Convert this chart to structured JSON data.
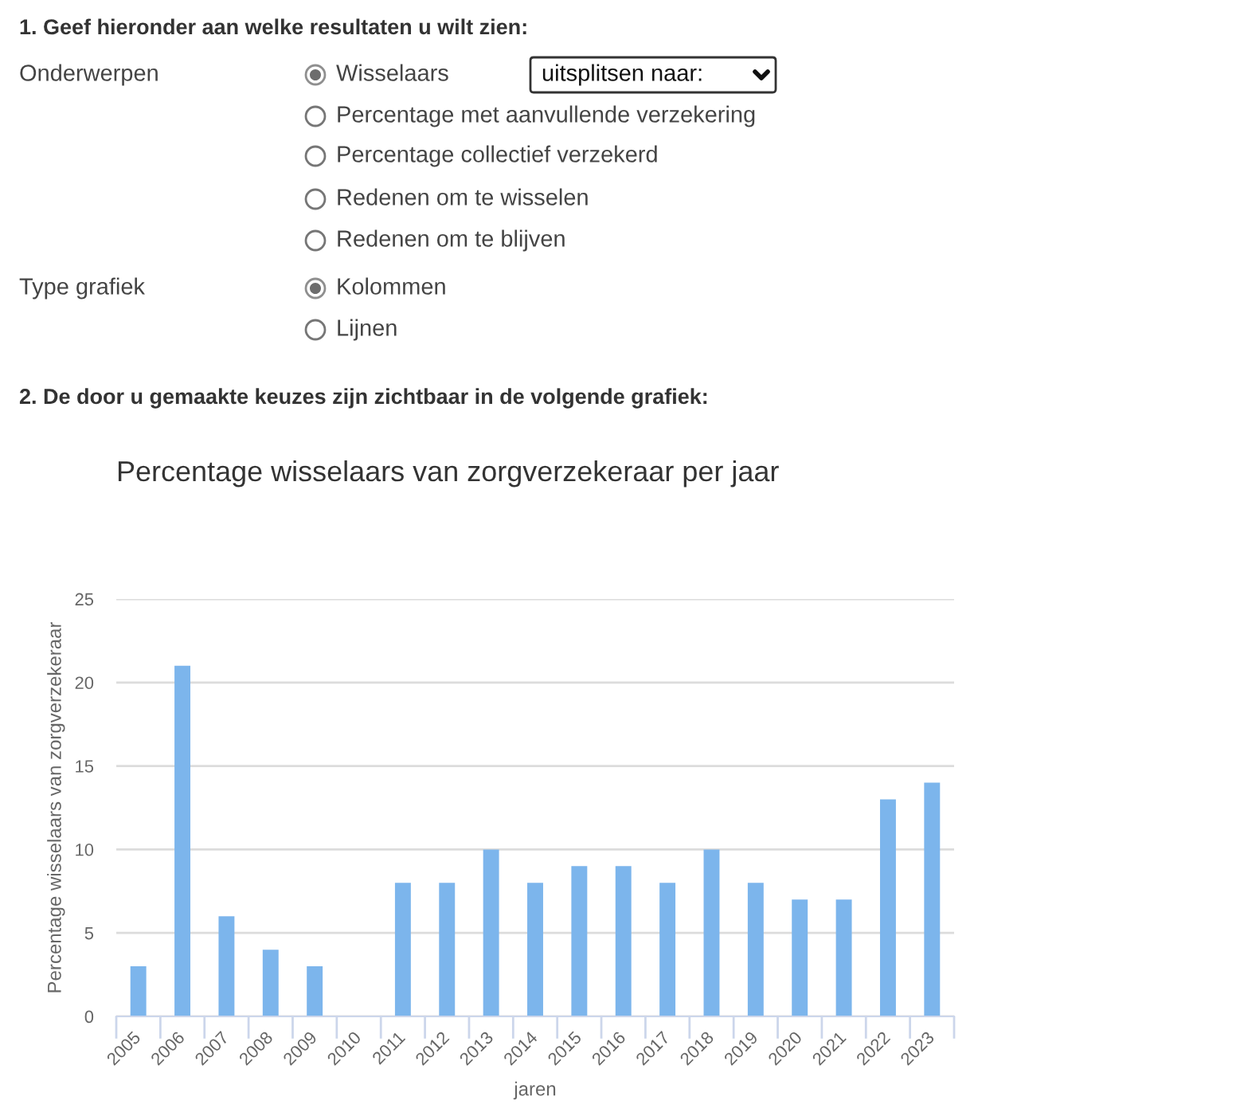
{
  "chart_data": {
    "type": "bar",
    "title": "Percentage wisselaars van zorgverzekeraar per jaar",
    "xlabel": "jaren",
    "ylabel": "Percentage wisselaars van zorgverzekeraar",
    "categories": [
      "2005",
      "2006",
      "2007",
      "2008",
      "2009",
      "2010",
      "2011",
      "2012",
      "2013",
      "2014",
      "2015",
      "2016",
      "2017",
      "2018",
      "2019",
      "2020",
      "2021",
      "2022",
      "2023"
    ],
    "values": [
      3,
      21,
      6,
      4,
      3,
      null,
      8,
      8,
      10,
      8,
      9,
      9,
      8,
      10,
      8,
      7,
      7,
      13,
      14
    ],
    "color": "#7cb5ec",
    "ylim": [
      0,
      25
    ],
    "yticks": [
      0,
      5,
      10,
      15,
      20,
      25
    ],
    "grid": "y",
    "annotations": [
      "1. Geef hieronder aan welke resultaten u wilt zien:",
      "Onderwerpen",
      "Wisselaars",
      "uitsplitsen naar:",
      "Percentage met aanvullende verzekering",
      "Percentage collectief verzekerd",
      "Redenen om te wisselen",
      "Redenen om te blijven",
      "Type grafiek",
      "Kolommen",
      "Lijnen",
      "2. De door u gemaakte keuzes zijn zichtbaar in de volgende grafiek:"
    ]
  }
}
